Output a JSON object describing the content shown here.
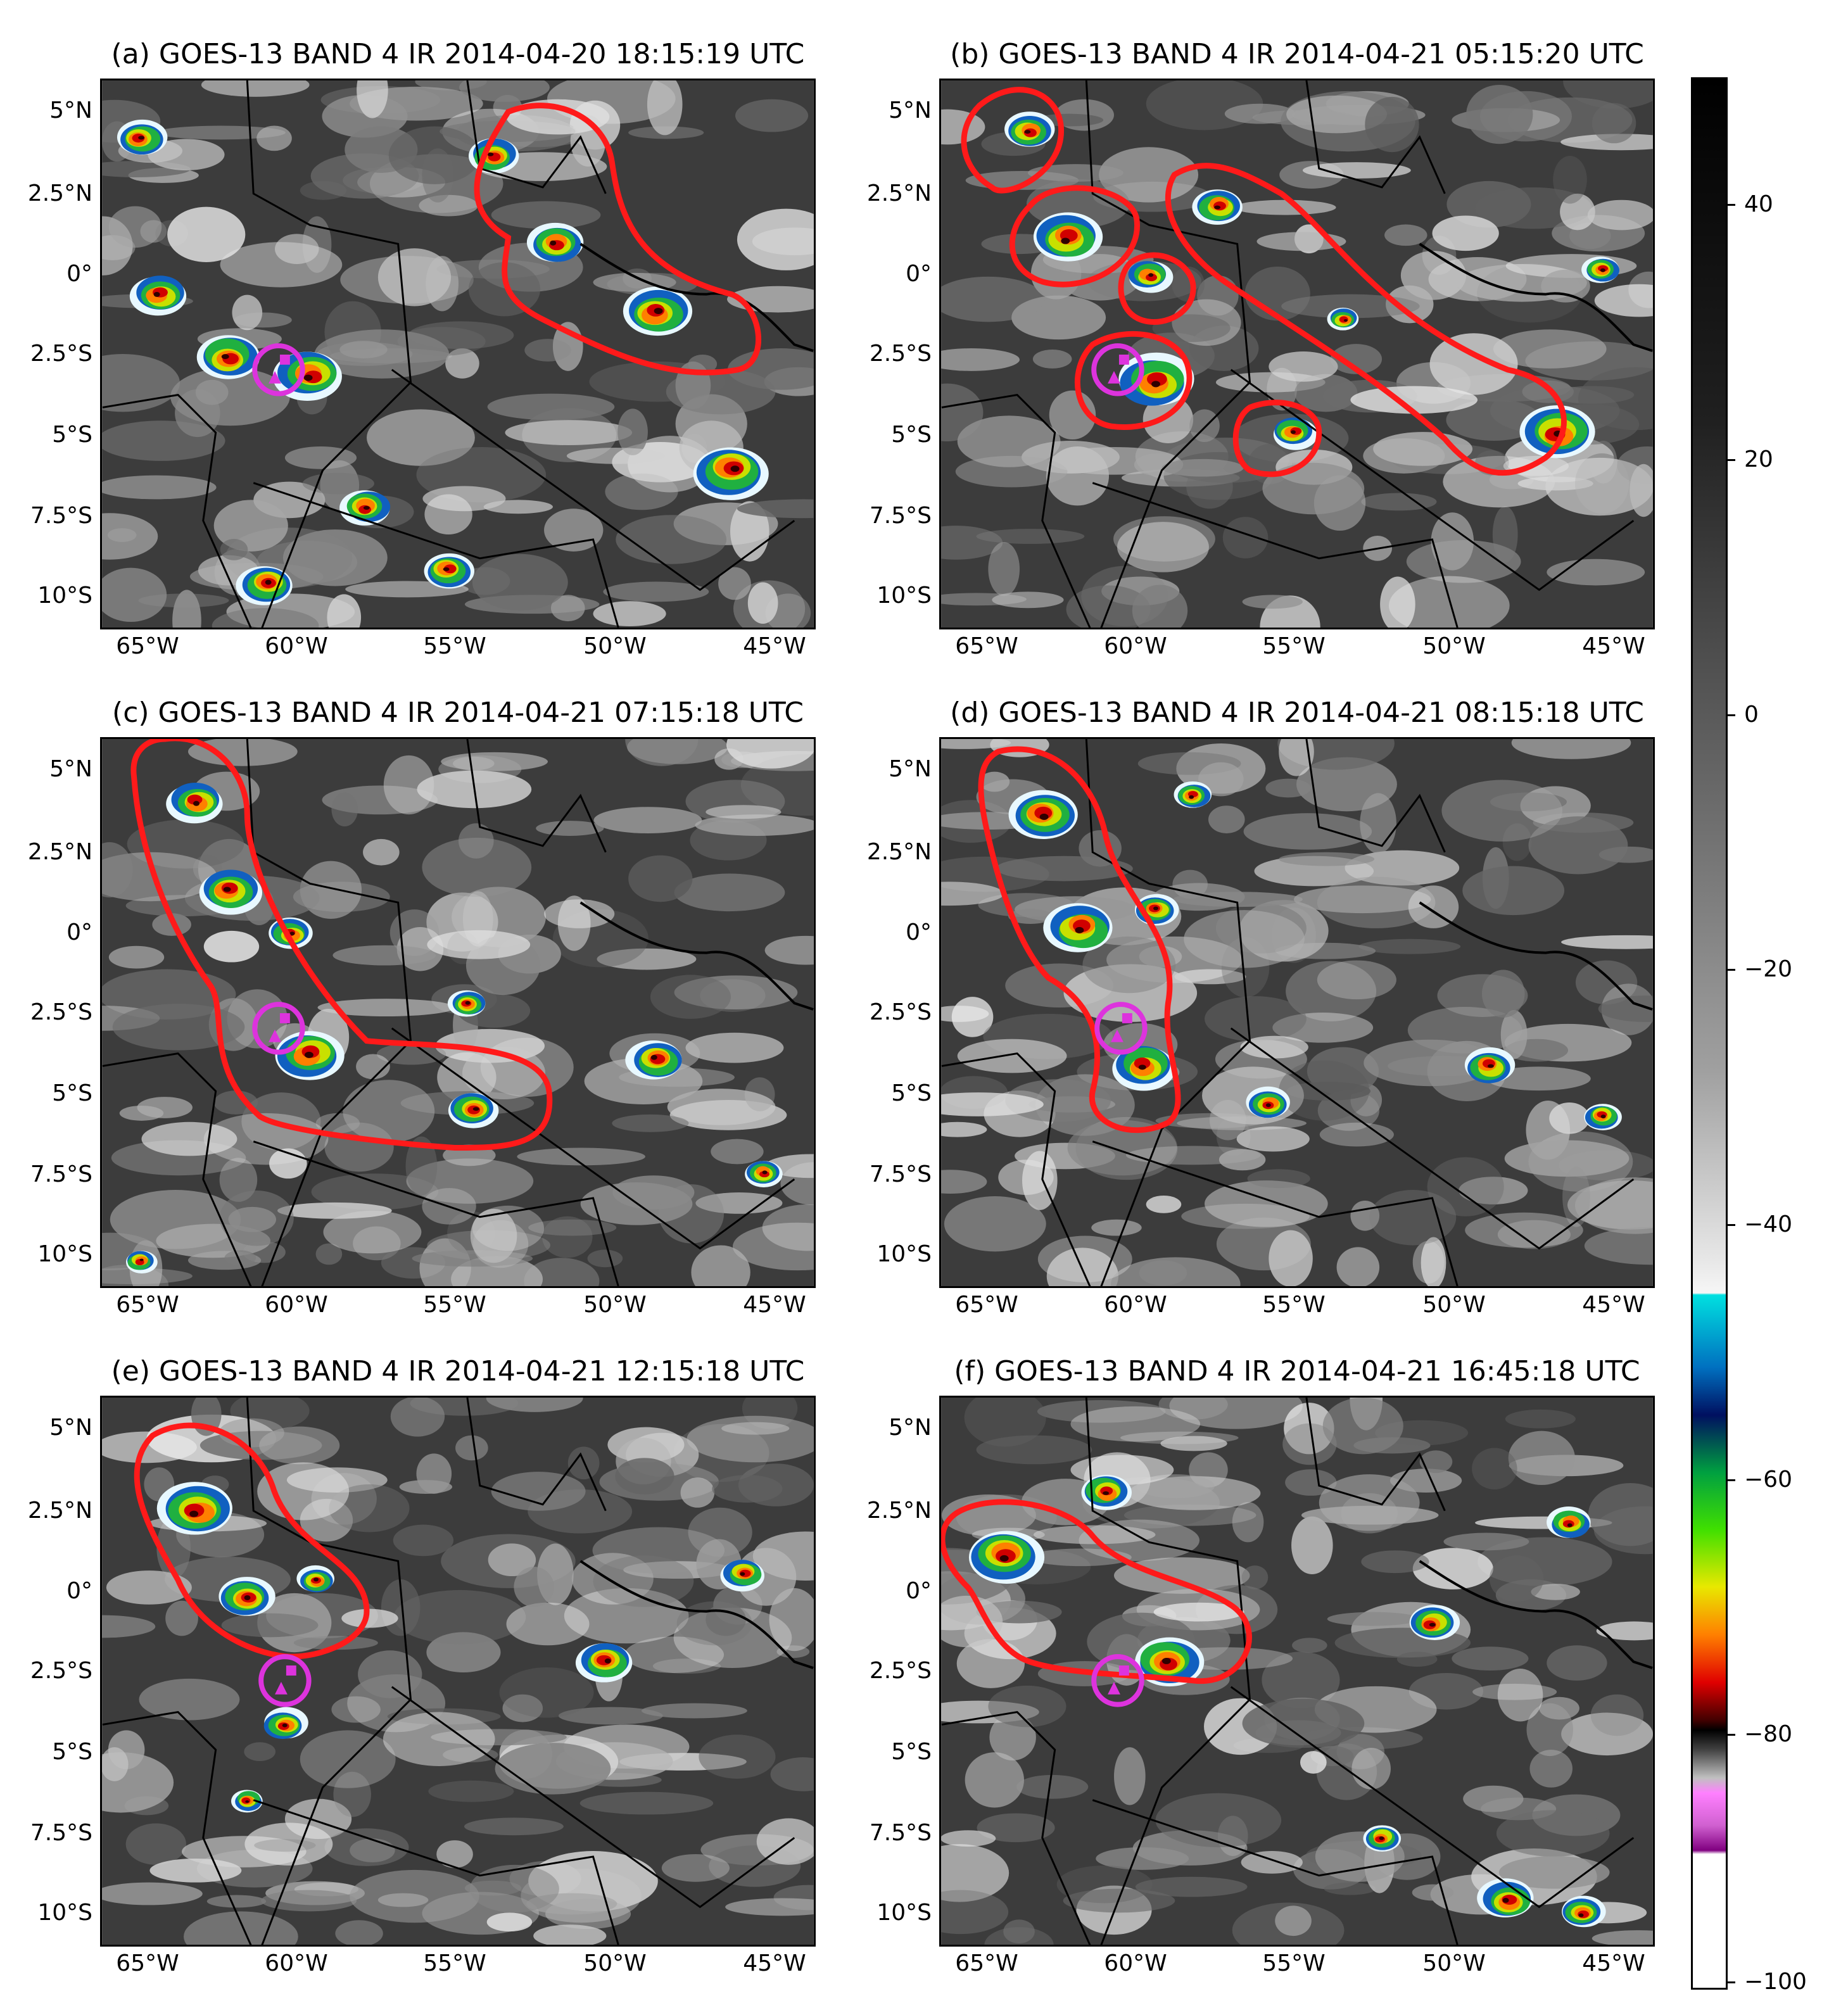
{
  "panels": [
    {
      "id": "a",
      "title": "(a) GOES-13 BAND 4 IR 2014-04-20 18:15:19 UTC"
    },
    {
      "id": "b",
      "title": "(b) GOES-13 BAND 4 IR 2014-04-21 05:15:20 UTC"
    },
    {
      "id": "c",
      "title": "(c) GOES-13 BAND 4 IR 2014-04-21 07:15:18 UTC"
    },
    {
      "id": "d",
      "title": "(d) GOES-13 BAND 4 IR 2014-04-21 08:15:18 UTC"
    },
    {
      "id": "e",
      "title": "(e) GOES-13 BAND 4 IR 2014-04-21 12:15:18 UTC"
    },
    {
      "id": "f",
      "title": "(f) GOES-13 BAND 4 IR 2014-04-21 16:45:18 UTC"
    }
  ],
  "lat_ticks": [
    "5°N",
    "2.5°N",
    "0°",
    "2.5°S",
    "5°S",
    "7.5°S",
    "10°S"
  ],
  "lon_ticks": [
    "65°W",
    "60°W",
    "55°W",
    "50°W",
    "45°W"
  ],
  "colorbar": {
    "ticks": [
      "40",
      "20",
      "0",
      "−20",
      "−40",
      "−60",
      "−80",
      "−100"
    ]
  },
  "colors": {
    "highlight_outline": "#ff1a1a",
    "site_marker": "#dd33dd"
  }
}
